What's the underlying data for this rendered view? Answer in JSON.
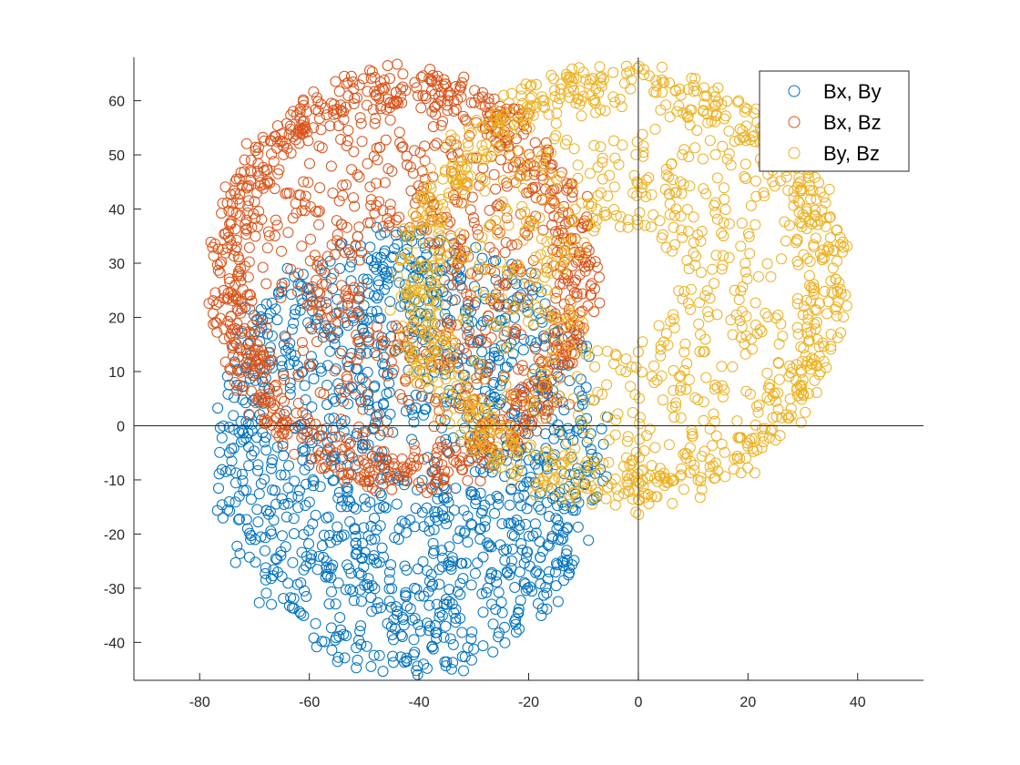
{
  "chart_data": {
    "type": "scatter",
    "title": "",
    "xlabel": "",
    "ylabel": "",
    "xlim": [
      -92,
      52
    ],
    "ylim": [
      -47,
      68
    ],
    "xticks": [
      -80,
      -60,
      -40,
      -20,
      0,
      20,
      40
    ],
    "yticks": [
      -40,
      -30,
      -20,
      -10,
      0,
      10,
      20,
      30,
      40,
      50,
      60
    ],
    "xtick_labels": [
      "-80",
      "-60",
      "-40",
      "-20",
      "0",
      "20",
      "40"
    ],
    "ytick_labels": [
      "-40",
      "-30",
      "-20",
      "-10",
      "0",
      "10",
      "20",
      "30",
      "40",
      "50",
      "60"
    ],
    "grid": false,
    "zero_lines": true,
    "legend_position": "top-right",
    "marker": "open-circle",
    "series": [
      {
        "name": "Bx, By",
        "color": "#0072BD",
        "shape": "ellipse",
        "center": [
          -42,
          -5
        ],
        "radius": [
          36,
          41
        ]
      },
      {
        "name": "Bx, Bz",
        "color": "#D95319",
        "shape": "ring",
        "center": [
          -43,
          27
        ],
        "radius": [
          35,
          39
        ]
      },
      {
        "name": "By, Bz",
        "color": "#EDB120",
        "shape": "ring",
        "center": [
          -3,
          26
        ],
        "radius": [
          41,
          41
        ]
      }
    ]
  }
}
